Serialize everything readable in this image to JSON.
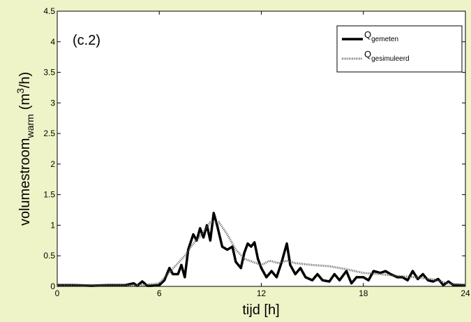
{
  "chart_data": {
    "type": "line",
    "annotation": "(c.2)",
    "x_label": "tijd [h]",
    "y_label": {
      "main": "volumestroom",
      "sub": "warm",
      "unit": "(m",
      "sup": "3",
      "unit_end": "/h)"
    },
    "xlim": [
      0,
      24
    ],
    "xticks": [
      0,
      6,
      12,
      18,
      24
    ],
    "ylim": [
      0,
      4.5
    ],
    "yticks": [
      0,
      0.5,
      1,
      1.5,
      2,
      2.5,
      3,
      3.5,
      4,
      4.5
    ],
    "series": [
      {
        "name": "Q",
        "name_sub": "gemeten",
        "color": "#000000",
        "style": "solid",
        "x": [
          0,
          1,
          2,
          3,
          4,
          4.5,
          4.7,
          5,
          5.3,
          5.5,
          6,
          6.3,
          6.6,
          6.8,
          7.1,
          7.3,
          7.5,
          7.7,
          8,
          8.2,
          8.4,
          8.6,
          8.8,
          9,
          9.2,
          9.4,
          9.7,
          10,
          10.3,
          10.5,
          10.8,
          11,
          11.2,
          11.4,
          11.6,
          11.8,
          12,
          12.3,
          12.6,
          12.9,
          13.2,
          13.5,
          13.7,
          14,
          14.3,
          14.6,
          15,
          15.3,
          15.6,
          16,
          16.3,
          16.6,
          17,
          17.3,
          17.6,
          18,
          18.3,
          18.6,
          19,
          19.3,
          19.6,
          20,
          20.3,
          20.6,
          20.9,
          21.2,
          21.5,
          21.8,
          22.1,
          22.4,
          22.7,
          23,
          23.3,
          24
        ],
        "values": [
          0.02,
          0.02,
          0.01,
          0.02,
          0.02,
          0.05,
          0.01,
          0.08,
          0.01,
          0.01,
          0.02,
          0.1,
          0.3,
          0.2,
          0.2,
          0.35,
          0.15,
          0.6,
          0.85,
          0.75,
          0.95,
          0.8,
          1.0,
          0.75,
          1.2,
          1.0,
          0.65,
          0.6,
          0.65,
          0.4,
          0.3,
          0.55,
          0.7,
          0.65,
          0.72,
          0.45,
          0.3,
          0.15,
          0.25,
          0.15,
          0.4,
          0.7,
          0.35,
          0.2,
          0.3,
          0.15,
          0.1,
          0.2,
          0.1,
          0.08,
          0.2,
          0.1,
          0.25,
          0.05,
          0.15,
          0.15,
          0.1,
          0.25,
          0.22,
          0.25,
          0.2,
          0.15,
          0.15,
          0.1,
          0.25,
          0.12,
          0.2,
          0.1,
          0.08,
          0.12,
          0.02,
          0.08,
          0.02,
          0.02
        ]
      },
      {
        "name": "Q",
        "name_sub": "gesimuleerd",
        "color": "#555555",
        "style": "dotted",
        "x": [
          0,
          5,
          6,
          6.5,
          7,
          7.5,
          8,
          8.5,
          9,
          9.5,
          10,
          10.5,
          11,
          11.5,
          12,
          12.5,
          13,
          13.5,
          14,
          15,
          16,
          17,
          18,
          19,
          20,
          21,
          22,
          23,
          24
        ],
        "values": [
          0.02,
          0.02,
          0.05,
          0.2,
          0.35,
          0.5,
          0.7,
          0.85,
          1.05,
          1.05,
          0.85,
          0.6,
          0.45,
          0.4,
          0.35,
          0.42,
          0.38,
          0.42,
          0.38,
          0.35,
          0.33,
          0.28,
          0.22,
          0.2,
          0.17,
          0.15,
          0.12,
          0.05,
          0.02
        ]
      }
    ]
  }
}
